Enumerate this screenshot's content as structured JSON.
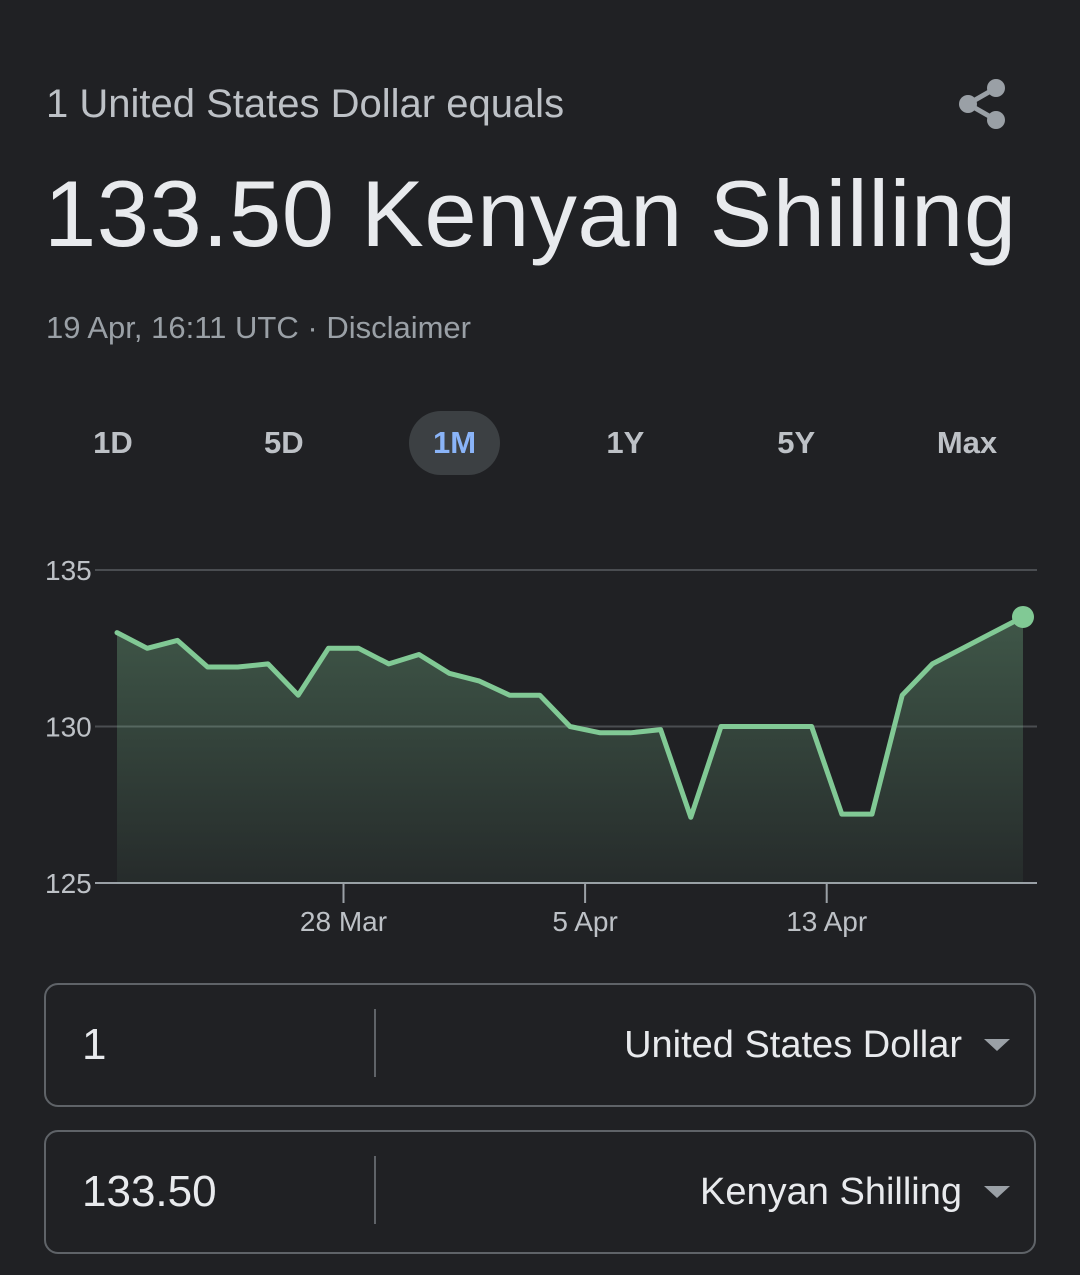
{
  "header": {
    "subtitle": "1 United States Dollar equals",
    "value_text": "133.50 Kenyan Shilling",
    "timestamp": "19 Apr, 16:11 UTC",
    "separator": " · ",
    "disclaimer": "Disclaimer",
    "share_icon": "share-icon"
  },
  "ranges": [
    {
      "label": "1D",
      "active": false
    },
    {
      "label": "5D",
      "active": false
    },
    {
      "label": "1M",
      "active": true
    },
    {
      "label": "1Y",
      "active": false
    },
    {
      "label": "5Y",
      "active": false
    },
    {
      "label": "Max",
      "active": false
    }
  ],
  "converter": {
    "from": {
      "amount": "1",
      "currency": "United States Dollar"
    },
    "to": {
      "amount": "133.50",
      "currency": "Kenyan Shilling"
    }
  },
  "colors": {
    "background": "#202124",
    "line": "#81c995",
    "active_tab_text": "#8ab4f8",
    "active_tab_bg": "#3c4043"
  },
  "chart_data": {
    "type": "area",
    "ylim": [
      125,
      135
    ],
    "y_ticks": [
      135,
      130,
      125
    ],
    "x_ticks": [
      {
        "label": "28 Mar",
        "index": 7.5
      },
      {
        "label": "5 Apr",
        "index": 15.5
      },
      {
        "label": "13 Apr",
        "index": 23.5
      }
    ],
    "grid": true,
    "series": [
      {
        "values": [
          133.0,
          132.5,
          132.75,
          131.9,
          131.9,
          132.0,
          131.0,
          132.5,
          132.5,
          132.0,
          132.3,
          131.7,
          131.45,
          131.0,
          131.0,
          130.0,
          129.8,
          129.8,
          129.9,
          127.1,
          130.0,
          130.0,
          130.0,
          130.0,
          127.2,
          127.2,
          131.0,
          132.0,
          132.5,
          133.0,
          133.5
        ]
      }
    ]
  }
}
